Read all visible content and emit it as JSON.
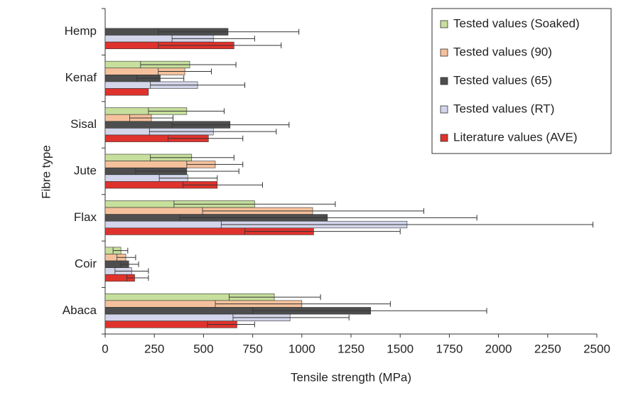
{
  "chart_data": {
    "type": "bar",
    "orientation": "horizontal",
    "x_label": "Tensile strength (MPa)",
    "y_label": "Fibre type",
    "categories": [
      "Hemp",
      "Kenaf",
      "Sisal",
      "Jute",
      "Flax",
      "Coir",
      "Abaca"
    ],
    "xlim": [
      0,
      2500
    ],
    "xticks": [
      0,
      250,
      500,
      750,
      1000,
      1250,
      1500,
      1750,
      2000,
      2250,
      2500
    ],
    "legend": "top-right",
    "series": [
      {
        "name": "Tested values (Soaked)",
        "color": "#c6df9c",
        "values": [
          null,
          430,
          415,
          440,
          760,
          80,
          860
        ],
        "low": [
          null,
          180,
          220,
          230,
          350,
          40,
          630
        ],
        "high": [
          null,
          665,
          605,
          655,
          1170,
          115,
          1095
        ]
      },
      {
        "name": "Tested values (90)",
        "color": "#f5c19c",
        "values": [
          null,
          405,
          235,
          560,
          1055,
          105,
          1000
        ],
        "low": [
          null,
          270,
          125,
          415,
          495,
          60,
          560
        ],
        "high": [
          null,
          540,
          345,
          700,
          1620,
          155,
          1450
        ]
      },
      {
        "name": "Tested values (65)",
        "color": "#4e4e4e",
        "values": [
          625,
          280,
          635,
          415,
          1130,
          120,
          1350
        ],
        "low": [
          270,
          160,
          340,
          155,
          380,
          80,
          750
        ],
        "high": [
          985,
          400,
          935,
          680,
          1890,
          170,
          1940
        ]
      },
      {
        "name": "Tested values (RT)",
        "color": "#d3d6ea",
        "values": [
          550,
          470,
          550,
          420,
          1535,
          135,
          940
        ],
        "low": [
          340,
          230,
          225,
          275,
          590,
          50,
          650
        ],
        "high": [
          760,
          710,
          870,
          570,
          2480,
          220,
          1240
        ]
      },
      {
        "name": "Literature values (AVE)",
        "color": "#e0322c",
        "values": [
          655,
          220,
          525,
          570,
          1060,
          150,
          670
        ],
        "low": [
          270,
          null,
          320,
          395,
          710,
          110,
          520
        ],
        "high": [
          895,
          null,
          700,
          800,
          1500,
          220,
          760
        ]
      }
    ]
  }
}
